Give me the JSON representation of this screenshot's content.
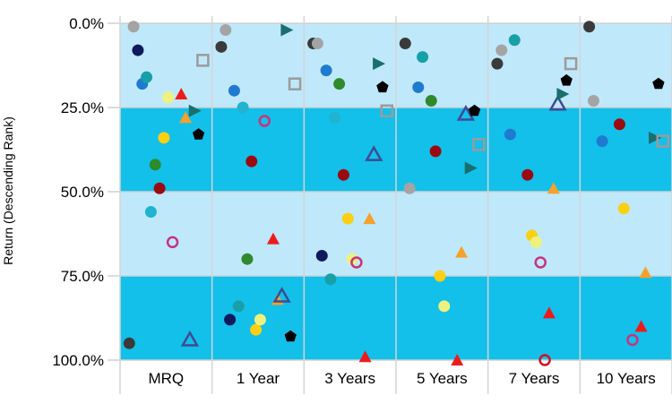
{
  "chart_data": {
    "type": "scatter",
    "title": "",
    "xlabel": "",
    "ylabel": "Return (Descending Rank)",
    "categories": [
      "MRQ",
      "1 Year",
      "3 Years",
      "5 Years",
      "7 Years",
      "10 Years"
    ],
    "y_ticks": [
      "0.0%",
      "25.0%",
      "50.0%",
      "75.0%",
      "100.0%"
    ],
    "y_tick_values": [
      0,
      25,
      50,
      75,
      100
    ],
    "ylim": [
      0,
      100
    ],
    "y_axis_inverted": true,
    "grid": true,
    "band_colors": {
      "light": "#bfe9fb",
      "dark": "#12c0ea"
    },
    "series": [
      {
        "marker": "circle",
        "color": "#3a3a3a",
        "values": [
          95,
          7,
          6,
          6,
          12,
          1
        ]
      },
      {
        "marker": "circle",
        "color": "#a4a4a4",
        "values": [
          1,
          2,
          6,
          49,
          8,
          23
        ]
      },
      {
        "marker": "circle",
        "color": "#0e1a5c",
        "values": [
          8,
          88,
          69,
          null,
          null,
          null
        ]
      },
      {
        "marker": "circle",
        "color": "#1f7ad0",
        "values": [
          18,
          20,
          14,
          19,
          33,
          35
        ]
      },
      {
        "marker": "circle",
        "color": "#17a0a8",
        "values": [
          16,
          84,
          76,
          10,
          5,
          null
        ]
      },
      {
        "marker": "circle",
        "color": "#21b3cf",
        "values": [
          56,
          25,
          28,
          null,
          null,
          null
        ]
      },
      {
        "marker": "circle",
        "color": "#2f8a2b",
        "values": [
          42,
          70,
          18,
          23,
          null,
          null
        ]
      },
      {
        "marker": "circle",
        "color": "#9b0a10",
        "values": [
          49,
          41,
          45,
          38,
          45,
          30
        ]
      },
      {
        "marker": "circle",
        "color": "#fbcf12",
        "values": [
          34,
          91,
          58,
          75,
          63,
          55
        ]
      },
      {
        "marker": "circle",
        "color": "#eef27c",
        "values": [
          22,
          88,
          70,
          84,
          65,
          null
        ]
      },
      {
        "marker": "ring",
        "color": "#c9337d",
        "values": [
          65,
          29,
          71,
          null,
          71,
          94
        ]
      },
      {
        "marker": "ring",
        "color": "#d11025",
        "values": [
          null,
          null,
          null,
          null,
          100,
          null
        ]
      },
      {
        "marker": "triangle",
        "color": "#ee1b1b",
        "values": [
          21,
          64,
          99,
          100,
          86,
          90
        ]
      },
      {
        "marker": "triangle",
        "color": "#f6a12a",
        "values": [
          28,
          82,
          58,
          68,
          49,
          74
        ]
      },
      {
        "marker": "triangle-open",
        "color": "#3f4a93",
        "values": [
          94,
          81,
          39,
          27,
          24,
          null
        ]
      },
      {
        "marker": "triangle-right",
        "color": "#1a6f6d",
        "values": [
          26,
          2,
          12,
          43,
          21,
          34
        ]
      },
      {
        "marker": "pentagon",
        "color": "#000000",
        "values": [
          33,
          93,
          19,
          26,
          17,
          18
        ]
      },
      {
        "marker": "square-open",
        "color": "#9b9b9b",
        "values": [
          11,
          18,
          26,
          36,
          12,
          35
        ]
      }
    ]
  }
}
